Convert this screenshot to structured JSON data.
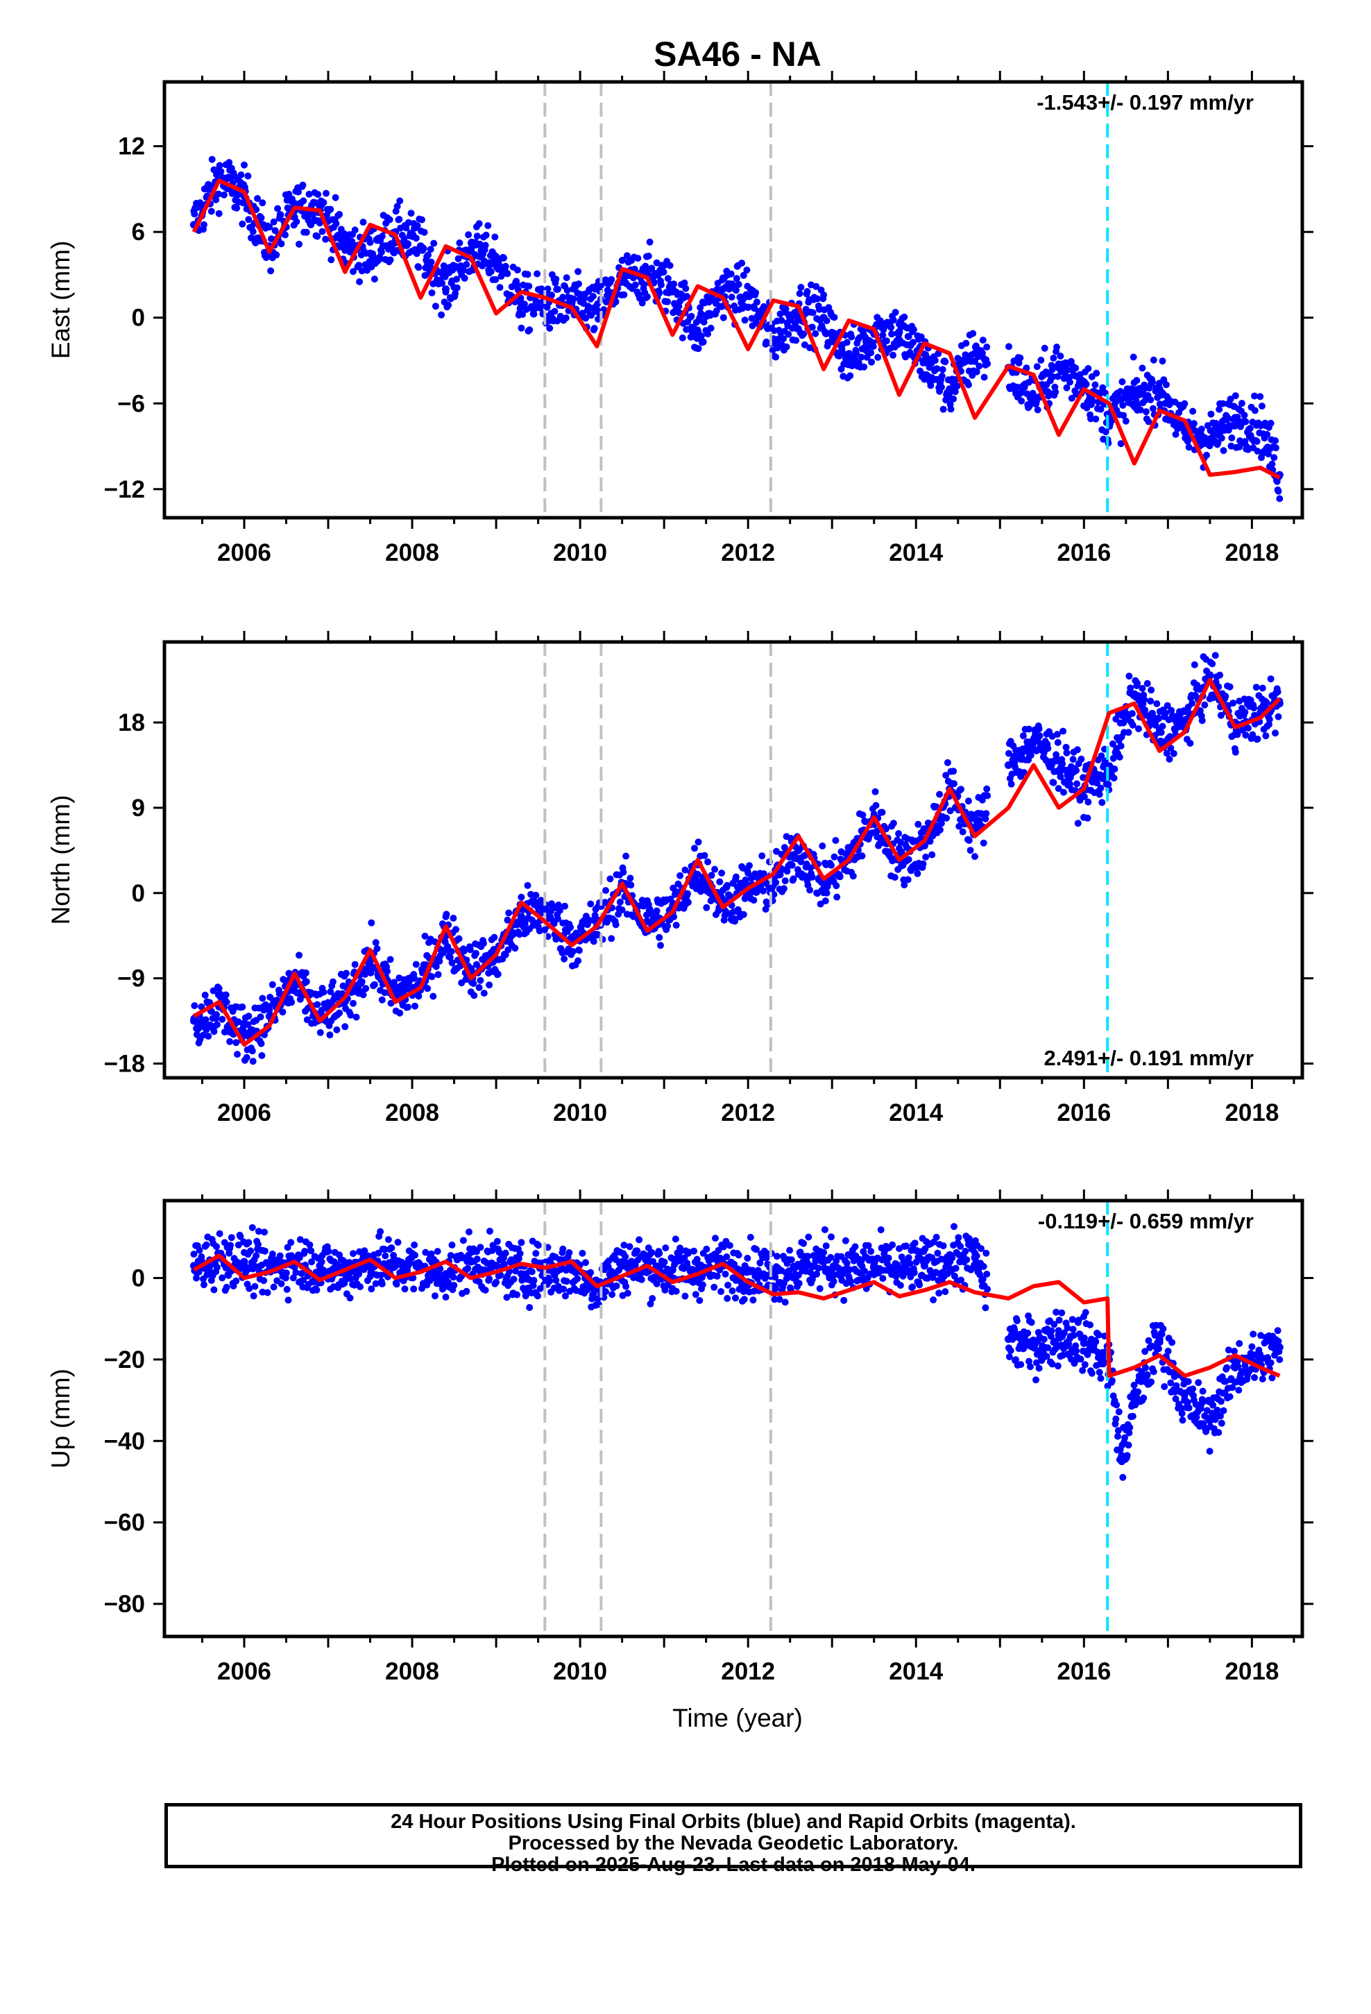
{
  "figure": {
    "title": "SA46 - NA",
    "xlabel": "Time (year)",
    "x_ticks": [
      2006,
      2008,
      2010,
      2012,
      2014,
      2016,
      2018
    ],
    "colors": {
      "final_orbits": "#0000ff",
      "model": "#ff0000",
      "steps": "#c0c0c0",
      "equipment_change": "#00e5ff",
      "frame": "#000000"
    }
  },
  "chart_data": [
    {
      "type": "scatter",
      "panel": "east",
      "ylabel": "East (mm)",
      "rate_text": "-1.543+/- 0.197 mm/yr",
      "rate_position": "top-right",
      "xlim": [
        2005.05,
        2018.6
      ],
      "ylim": [
        -14.0,
        16.5
      ],
      "y_ticks": [
        12,
        6,
        0,
        -6,
        -12
      ],
      "vertical_lines_gray": [
        2009.58,
        2010.25,
        2012.27
      ],
      "vertical_line_cyan": 2016.28,
      "series": [
        {
          "name": "Final Orbits (blue)",
          "style": "points",
          "x": [
            2005.4,
            2005.7,
            2006.0,
            2006.3,
            2006.6,
            2006.9,
            2007.2,
            2007.5,
            2007.8,
            2008.1,
            2008.4,
            2008.7,
            2009.0,
            2009.3,
            2009.58,
            2009.9,
            2010.2,
            2010.5,
            2010.8,
            2011.1,
            2011.4,
            2011.7,
            2012.0,
            2012.3,
            2012.6,
            2012.9,
            2013.2,
            2013.5,
            2013.8,
            2014.1,
            2014.4,
            2014.7,
            2015.1,
            2015.4,
            2015.7,
            2016.0,
            2016.3,
            2016.6,
            2016.9,
            2017.2,
            2017.5,
            2017.8,
            2018.1,
            2018.33
          ],
          "y": [
            6.5,
            9.8,
            8.5,
            5.0,
            7.5,
            7.8,
            5.0,
            4.5,
            6.0,
            5.0,
            2.0,
            4.8,
            4.0,
            1.0,
            1.0,
            1.0,
            0.5,
            2.5,
            3.0,
            2.0,
            -1.0,
            2.0,
            1.5,
            -1.5,
            0.5,
            0.0,
            -3.0,
            -1.0,
            -1.0,
            -3.0,
            -5.0,
            -2.5,
            -3.5,
            -5.5,
            -3.5,
            -4.5,
            -7.0,
            -5.5,
            -5.0,
            -8.0,
            -8.5,
            -7.0,
            -7.5,
            -11.0
          ]
        },
        {
          "name": "Model (red)",
          "style": "line",
          "x": [
            2005.4,
            2005.7,
            2006.0,
            2006.3,
            2006.6,
            2006.9,
            2007.2,
            2007.5,
            2007.8,
            2008.1,
            2008.4,
            2008.7,
            2009.0,
            2009.3,
            2009.58,
            2009.9,
            2010.2,
            2010.5,
            2010.8,
            2011.1,
            2011.4,
            2011.7,
            2012.0,
            2012.3,
            2012.6,
            2012.9,
            2013.2,
            2013.5,
            2013.8,
            2014.1,
            2014.4,
            2014.7,
            2015.1,
            2015.4,
            2015.7,
            2016.0,
            2016.3,
            2016.6,
            2016.9,
            2017.2,
            2017.5,
            2017.8,
            2018.1,
            2018.33
          ],
          "y": [
            6.0,
            9.6,
            8.8,
            4.6,
            7.7,
            7.5,
            3.2,
            6.5,
            5.8,
            1.4,
            5.0,
            4.2,
            0.3,
            1.8,
            1.4,
            0.7,
            -2.0,
            3.4,
            2.8,
            -1.2,
            2.2,
            1.4,
            -2.2,
            1.2,
            0.8,
            -3.6,
            -0.2,
            -0.8,
            -5.4,
            -1.8,
            -2.5,
            -7.0,
            -3.4,
            -4.0,
            -8.2,
            -5.0,
            -6.0,
            -10.2,
            -6.5,
            -7.2,
            -11.0,
            -10.8,
            -10.5,
            -11.2
          ]
        }
      ]
    },
    {
      "type": "scatter",
      "panel": "north",
      "ylabel": "North (mm)",
      "rate_text": "2.491+/- 0.191 mm/yr",
      "rate_position": "bottom-right",
      "xlim": [
        2005.05,
        2018.6
      ],
      "ylim": [
        -19.5,
        26.5
      ],
      "y_ticks": [
        18,
        9,
        0,
        -9,
        -18
      ],
      "vertical_lines_gray": [
        2009.58,
        2010.25,
        2012.27
      ],
      "vertical_line_cyan": 2016.28,
      "series": [
        {
          "name": "Final Orbits (blue)",
          "style": "points",
          "x": [
            2005.4,
            2005.7,
            2006.0,
            2006.3,
            2006.6,
            2006.9,
            2007.2,
            2007.5,
            2007.8,
            2008.1,
            2008.4,
            2008.7,
            2009.0,
            2009.3,
            2009.58,
            2009.9,
            2010.2,
            2010.5,
            2010.8,
            2011.1,
            2011.4,
            2011.7,
            2012.0,
            2012.3,
            2012.6,
            2012.9,
            2013.2,
            2013.5,
            2013.8,
            2014.1,
            2014.4,
            2014.7,
            2015.1,
            2015.4,
            2015.7,
            2016.0,
            2016.3,
            2016.6,
            2016.9,
            2017.2,
            2017.5,
            2017.8,
            2018.1,
            2018.33
          ],
          "y": [
            -13.5,
            -12.0,
            -15.0,
            -13.0,
            -9.5,
            -13.0,
            -11.5,
            -7.0,
            -11.0,
            -9.5,
            -4.5,
            -8.0,
            -7.0,
            -2.5,
            -2.0,
            -5.0,
            -3.5,
            0.5,
            -3.0,
            -2.0,
            3.0,
            -1.0,
            0.5,
            1.0,
            4.5,
            1.0,
            3.5,
            8.0,
            3.5,
            5.0,
            11.0,
            6.5,
            13.5,
            16.0,
            14.0,
            11.0,
            13.0,
            21.0,
            17.0,
            18.0,
            23.0,
            18.0,
            19.0,
            20.0
          ]
        },
        {
          "name": "Model (red)",
          "style": "line",
          "x": [
            2005.4,
            2005.7,
            2006.0,
            2006.3,
            2006.6,
            2006.9,
            2007.2,
            2007.5,
            2007.8,
            2008.1,
            2008.4,
            2008.7,
            2009.0,
            2009.3,
            2009.58,
            2009.9,
            2010.2,
            2010.5,
            2010.8,
            2011.1,
            2011.4,
            2011.7,
            2012.0,
            2012.3,
            2012.6,
            2012.9,
            2013.2,
            2013.5,
            2013.8,
            2014.1,
            2014.4,
            2014.7,
            2015.1,
            2015.4,
            2015.7,
            2016.0,
            2016.3,
            2016.6,
            2016.9,
            2017.2,
            2017.5,
            2017.8,
            2018.1,
            2018.33
          ],
          "y": [
            -13.0,
            -11.5,
            -16.0,
            -14.0,
            -8.5,
            -13.5,
            -11.0,
            -6.0,
            -11.5,
            -10.0,
            -3.5,
            -9.0,
            -6.5,
            -1.0,
            -3.0,
            -5.5,
            -3.5,
            1.0,
            -4.0,
            -2.0,
            3.5,
            -1.5,
            0.5,
            2.0,
            6.0,
            1.5,
            3.5,
            8.0,
            3.5,
            5.5,
            11.0,
            6.0,
            9.0,
            13.5,
            9.0,
            11.0,
            19.0,
            20.0,
            15.0,
            17.0,
            22.5,
            17.5,
            18.5,
            20.5
          ]
        }
      ]
    },
    {
      "type": "scatter",
      "panel": "up",
      "ylabel": "Up (mm)",
      "rate_text": "-0.119+/- 0.659 mm/yr",
      "rate_position": "top-right",
      "xlim": [
        2005.05,
        2018.6
      ],
      "ylim": [
        -88.0,
        19.0
      ],
      "y_ticks": [
        0,
        -20,
        -40,
        -60,
        -80
      ],
      "vertical_lines_gray": [
        2009.58,
        2010.25,
        2012.27
      ],
      "vertical_line_cyan": 2016.28,
      "series": [
        {
          "name": "Final Orbits (blue)",
          "style": "points",
          "x": [
            2005.4,
            2005.7,
            2006.0,
            2006.3,
            2006.6,
            2006.9,
            2007.2,
            2007.5,
            2007.8,
            2008.1,
            2008.4,
            2008.7,
            2009.0,
            2009.3,
            2009.58,
            2009.9,
            2010.2,
            2010.5,
            2010.8,
            2011.1,
            2011.4,
            2011.7,
            2012.0,
            2012.3,
            2012.6,
            2012.9,
            2013.2,
            2013.5,
            2013.8,
            2014.1,
            2014.4,
            2014.7,
            2015.1,
            2015.4,
            2015.7,
            2016.0,
            2016.3,
            2016.45,
            2016.6,
            2016.9,
            2017.2,
            2017.5,
            2017.8,
            2018.1,
            2018.33
          ],
          "y": [
            3.0,
            5.0,
            4.0,
            2.0,
            4.0,
            3.0,
            1.0,
            4.0,
            3.0,
            2.0,
            1.0,
            4.0,
            3.0,
            1.0,
            2.0,
            2.0,
            -2.0,
            3.0,
            3.0,
            2.0,
            2.0,
            3.0,
            2.0,
            1.0,
            3.0,
            4.0,
            2.0,
            3.0,
            2.0,
            3.0,
            4.0,
            5.0,
            -15.0,
            -17.0,
            -14.0,
            -16.0,
            -20.0,
            -45.0,
            -30.0,
            -15.0,
            -30.0,
            -35.0,
            -22.0,
            -20.0,
            -17.0
          ]
        },
        {
          "name": "Model (red)",
          "style": "line",
          "x": [
            2005.4,
            2005.7,
            2006.0,
            2006.3,
            2006.6,
            2006.9,
            2007.2,
            2007.5,
            2007.8,
            2008.1,
            2008.4,
            2008.7,
            2009.0,
            2009.3,
            2009.58,
            2009.9,
            2010.2,
            2010.5,
            2010.8,
            2011.1,
            2011.4,
            2011.7,
            2012.0,
            2012.3,
            2012.6,
            2012.9,
            2013.2,
            2013.5,
            2013.8,
            2014.1,
            2014.4,
            2014.7,
            2015.1,
            2015.4,
            2015.7,
            2016.0,
            2016.28,
            2016.3,
            2016.6,
            2016.9,
            2017.2,
            2017.5,
            2017.8,
            2018.1,
            2018.33
          ],
          "y": [
            2.0,
            5.5,
            0.0,
            1.5,
            4.0,
            -0.5,
            2.0,
            4.5,
            0.0,
            1.5,
            4.0,
            0.0,
            1.5,
            3.5,
            2.5,
            4.0,
            -2.0,
            0.5,
            3.0,
            -1.0,
            1.0,
            3.5,
            -1.0,
            -4.0,
            -3.5,
            -5.0,
            -3.0,
            -1.0,
            -4.5,
            -3.0,
            -1.0,
            -3.5,
            -5.0,
            -2.0,
            -1.0,
            -6.0,
            -5.0,
            -24.0,
            -22.0,
            -19.0,
            -24.0,
            -22.0,
            -19.0,
            -22.0,
            -24.0
          ]
        }
      ]
    }
  ],
  "caption": {
    "line1": "24 Hour Positions Using Final Orbits (blue) and Rapid Orbits (magenta).",
    "line2": "Processed by the Nevada Geodetic Laboratory.",
    "line3": "Plotted on 2025-Aug-23. Last data on 2018-May-04."
  }
}
